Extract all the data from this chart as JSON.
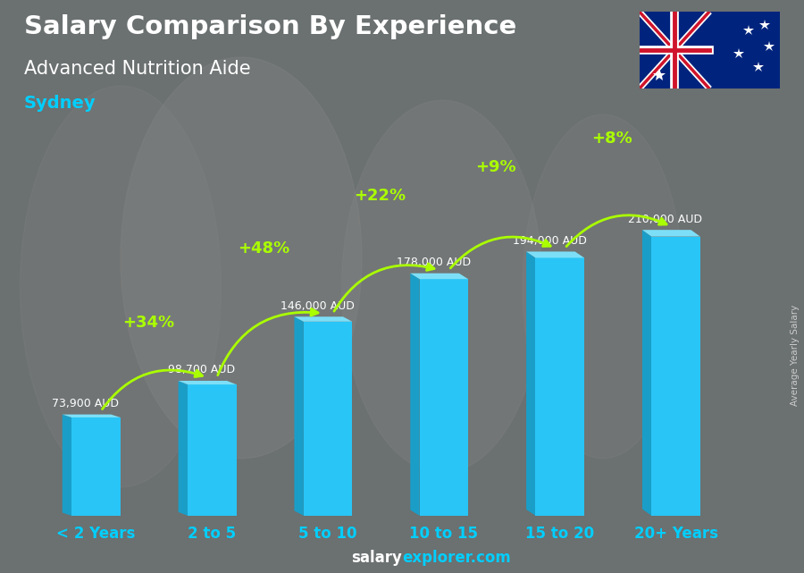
{
  "title": "Salary Comparison By Experience",
  "subtitle": "Advanced Nutrition Aide",
  "city": "Sydney",
  "categories": [
    "< 2 Years",
    "2 to 5",
    "5 to 10",
    "10 to 15",
    "15 to 20",
    "20+ Years"
  ],
  "values": [
    73900,
    98700,
    146000,
    178000,
    194000,
    210000
  ],
  "value_labels": [
    "73,900 AUD",
    "98,700 AUD",
    "146,000 AUD",
    "178,000 AUD",
    "194,000 AUD",
    "210,000 AUD"
  ],
  "pct_changes": [
    "+34%",
    "+48%",
    "+22%",
    "+9%",
    "+8%"
  ],
  "bar_color_face": "#29C5F6",
  "bar_color_left": "#1A9EC8",
  "bar_color_top": "#7DDFF7",
  "bg_color": "#6b7070",
  "title_color": "#ffffff",
  "subtitle_color": "#ffffff",
  "city_color": "#00CFFF",
  "value_label_color": "#ffffff",
  "pct_color": "#aaff00",
  "xlabel_color": "#00CFFF",
  "footer_salary_color": "#ffffff",
  "footer_explorer_color": "#00CFFF",
  "footer_salary": "salary",
  "footer_explorer": "explorer.com",
  "side_label": "Average Yearly Salary",
  "ylim": [
    0,
    250000
  ],
  "bar_width": 0.42,
  "side_depth": 0.08
}
